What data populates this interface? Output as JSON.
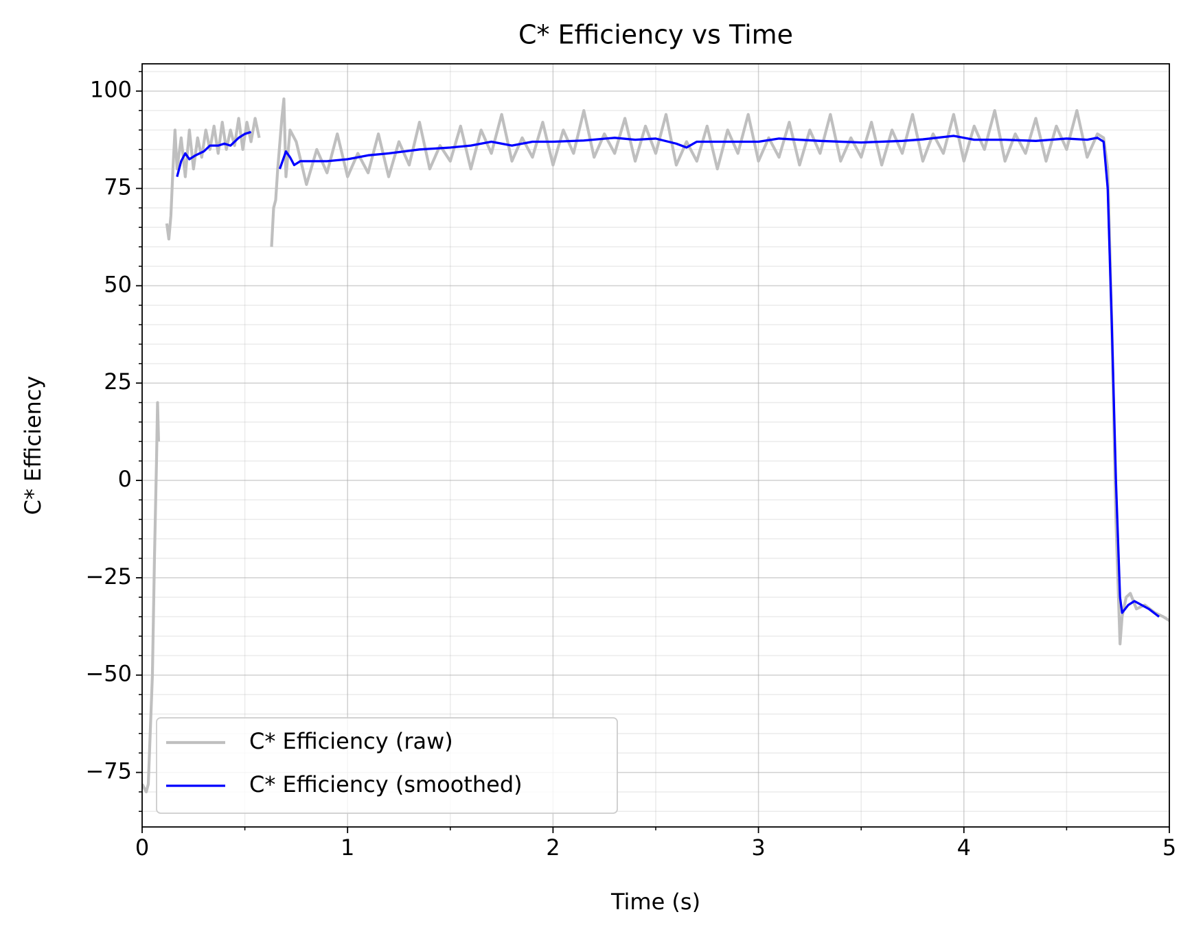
{
  "chart_data": {
    "type": "line",
    "title": "C* Efficiency vs Time",
    "xlabel": "Time (s)",
    "ylabel": "C* Efficiency",
    "xlim": [
      0,
      5
    ],
    "ylim": [
      -89,
      107
    ],
    "xticks": [
      0,
      1,
      2,
      3,
      4,
      5
    ],
    "yticks": [
      {
        "value": -75,
        "label": "−75"
      },
      {
        "value": -50,
        "label": "−50"
      },
      {
        "value": -25,
        "label": "−25"
      },
      0,
      25,
      50,
      75,
      100
    ],
    "grid": true,
    "minor_grid": true,
    "minor_xstep": 0.5,
    "minor_ystep": 5,
    "legend": "lower left",
    "series": [
      {
        "name": "C* Efficiency (raw)",
        "color": "#bfbfbf",
        "x": [
          0,
          0.02,
          0.03,
          0.05,
          0.06,
          0.07,
          0.075,
          0.08,
          0.1,
          0.12,
          0.13,
          0.14,
          0.15,
          0.16,
          0.17,
          0.19,
          0.21,
          0.23,
          0.25,
          0.27,
          0.29,
          0.31,
          0.33,
          0.35,
          0.37,
          0.39,
          0.41,
          0.43,
          0.45,
          0.47,
          0.49,
          0.51,
          0.53,
          0.55,
          0.57,
          0.6,
          0.63,
          0.64,
          0.65,
          0.66,
          0.68,
          0.69,
          0.7,
          0.72,
          0.75,
          0.8,
          0.85,
          0.9,
          0.95,
          1.0,
          1.05,
          1.1,
          1.15,
          1.2,
          1.25,
          1.3,
          1.35,
          1.4,
          1.45,
          1.5,
          1.55,
          1.6,
          1.65,
          1.7,
          1.75,
          1.8,
          1.85,
          1.9,
          1.95,
          2.0,
          2.05,
          2.1,
          2.15,
          2.2,
          2.25,
          2.3,
          2.35,
          2.4,
          2.45,
          2.5,
          2.55,
          2.6,
          2.65,
          2.7,
          2.75,
          2.8,
          2.85,
          2.9,
          2.95,
          3.0,
          3.05,
          3.1,
          3.15,
          3.2,
          3.25,
          3.3,
          3.35,
          3.4,
          3.45,
          3.5,
          3.55,
          3.6,
          3.65,
          3.7,
          3.75,
          3.8,
          3.85,
          3.9,
          3.95,
          4.0,
          4.05,
          4.1,
          4.15,
          4.2,
          4.25,
          4.3,
          4.35,
          4.4,
          4.45,
          4.5,
          4.55,
          4.6,
          4.65,
          4.68,
          4.7,
          4.72,
          4.74,
          4.76,
          4.77,
          4.79,
          4.81,
          4.84,
          4.88,
          4.93,
          4.97,
          5.0
        ],
        "values": [
          -78,
          -80,
          -78,
          -50,
          -20,
          5,
          20,
          10,
          null,
          66,
          62,
          68,
          80,
          90,
          80,
          88,
          78,
          90,
          80,
          88,
          83,
          90,
          85,
          91,
          84,
          92,
          85,
          90,
          86,
          93,
          85,
          92,
          87,
          93,
          88,
          null,
          60,
          70,
          72,
          80,
          93,
          98,
          78,
          90,
          87,
          76,
          85,
          79,
          89,
          78,
          84,
          79,
          89,
          78,
          87,
          81,
          92,
          80,
          86,
          82,
          91,
          80,
          90,
          84,
          94,
          82,
          88,
          83,
          92,
          81,
          90,
          84,
          95,
          83,
          89,
          84,
          93,
          82,
          91,
          84,
          94,
          81,
          87,
          82,
          91,
          80,
          90,
          84,
          94,
          82,
          88,
          83,
          92,
          81,
          90,
          84,
          94,
          82,
          88,
          83,
          92,
          81,
          90,
          84,
          94,
          82,
          89,
          84,
          94,
          82,
          91,
          85,
          95,
          82,
          89,
          84,
          93,
          82,
          91,
          85,
          95,
          83,
          89,
          88,
          80,
          40,
          -10,
          -42,
          -35,
          -30,
          -29,
          -33,
          -32,
          -34,
          -35,
          -36
        ]
      },
      {
        "name": "C* Efficiency (smoothed)",
        "color": "#0000ff",
        "x": [
          0.17,
          0.19,
          0.21,
          0.23,
          0.26,
          0.3,
          0.33,
          0.37,
          0.4,
          0.43,
          0.47,
          0.5,
          0.53,
          0.6,
          0.67,
          0.69,
          0.7,
          0.72,
          0.74,
          0.77,
          0.9,
          1.0,
          1.1,
          1.2,
          1.35,
          1.5,
          1.6,
          1.7,
          1.8,
          1.9,
          2.0,
          2.15,
          2.3,
          2.4,
          2.5,
          2.6,
          2.65,
          2.7,
          2.9,
          3.0,
          3.1,
          3.3,
          3.5,
          3.7,
          3.8,
          3.95,
          4.05,
          4.2,
          4.35,
          4.5,
          4.6,
          4.65,
          4.68,
          4.7,
          4.72,
          4.74,
          4.76,
          4.77,
          4.8,
          4.83,
          4.9,
          4.95
        ],
        "values": [
          78,
          82,
          84,
          82.5,
          83.5,
          84.5,
          86,
          86,
          86.5,
          86,
          88,
          89,
          89.5,
          null,
          80,
          83,
          84.5,
          83,
          81,
          82,
          82,
          82.5,
          83.5,
          84,
          85,
          85.5,
          86,
          87,
          86,
          87,
          87,
          87.3,
          88,
          87.5,
          87.8,
          86.5,
          85.5,
          87,
          87,
          87,
          87.8,
          87.2,
          86.8,
          87.2,
          87.6,
          88.5,
          87.5,
          87.5,
          87.2,
          87.8,
          87.5,
          88,
          87,
          75,
          40,
          0,
          -30,
          -34,
          -32,
          -31,
          -33,
          -35
        ]
      }
    ]
  }
}
